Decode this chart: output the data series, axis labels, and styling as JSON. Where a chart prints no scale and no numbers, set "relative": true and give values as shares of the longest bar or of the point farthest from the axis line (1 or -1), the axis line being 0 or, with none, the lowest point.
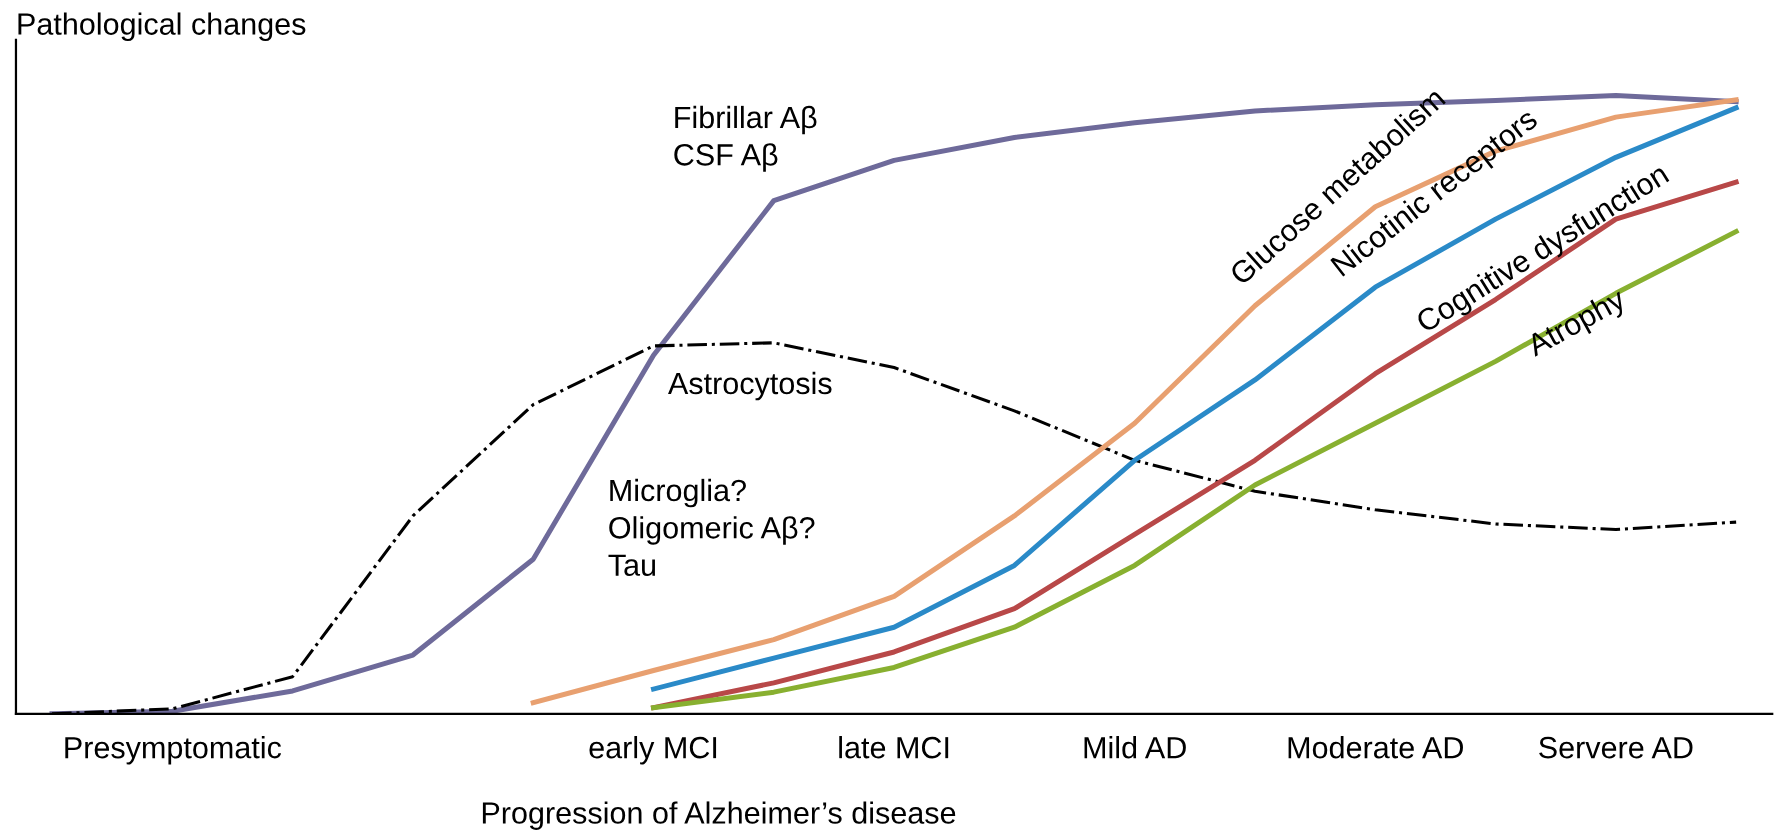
{
  "chart_data": {
    "type": "line",
    "relative": true,
    "ylabel": "Pathological changes",
    "xlabel": "Progression of Alzheimer’s disease",
    "tick_labels": "x",
    "grid": false,
    "legend": false,
    "marker": "none",
    "categories": [
      null,
      "Presymptomatic",
      null,
      null,
      null,
      "early MCI",
      null,
      "late MCI",
      null,
      "Mild AD",
      null,
      "Moderate AD",
      null,
      "Servere AD",
      null
    ],
    "annotations": [
      "Microglia?\nOligomeric Aβ?\nTau"
    ],
    "series": [
      {
        "name": "Fibrillar Aβ\nCSF Aβ",
        "color": "#6e6a9a",
        "line_style": "solid",
        "values": [
          0,
          0.004,
          0.037,
          0.095,
          0.25,
          0.58,
          0.83,
          0.895,
          0.932,
          0.956,
          0.975,
          0.985,
          0.992,
          1,
          0.99
        ]
      },
      {
        "name": "Astrocytosis",
        "color": "#000000",
        "line_style": "dashdot",
        "values": [
          0,
          0.008,
          0.06,
          0.32,
          0.5,
          0.595,
          0.6,
          0.56,
          0.49,
          0.41,
          0.36,
          0.33,
          0.307,
          0.298,
          0.31
        ]
      },
      {
        "name": "Glucose metabolism",
        "color": "#e8a070",
        "line_style": "solid",
        "values": [
          null,
          null,
          null,
          null,
          0.018,
          0.07,
          0.12,
          0.19,
          0.32,
          0.47,
          0.66,
          0.82,
          0.91,
          0.965,
          0.993
        ]
      },
      {
        "name": "Nicotinic receptors",
        "color": "#2a8ac8",
        "line_style": "solid",
        "values": [
          null,
          null,
          null,
          null,
          null,
          0.04,
          0.09,
          0.14,
          0.24,
          0.41,
          0.54,
          0.69,
          0.8,
          0.9,
          0.98
        ]
      },
      {
        "name": "Cognitive dysfunction",
        "color": "#b84848",
        "line_style": "solid",
        "values": [
          null,
          null,
          null,
          null,
          null,
          0.01,
          0.05,
          0.1,
          0.17,
          0.29,
          0.41,
          0.55,
          0.67,
          0.8,
          0.86
        ]
      },
      {
        "name": "Atrophy",
        "color": "#88b030",
        "line_style": "solid",
        "values": [
          null,
          null,
          null,
          null,
          null,
          0.01,
          0.035,
          0.075,
          0.14,
          0.24,
          0.37,
          0.47,
          0.57,
          0.68,
          0.78
        ]
      }
    ]
  }
}
